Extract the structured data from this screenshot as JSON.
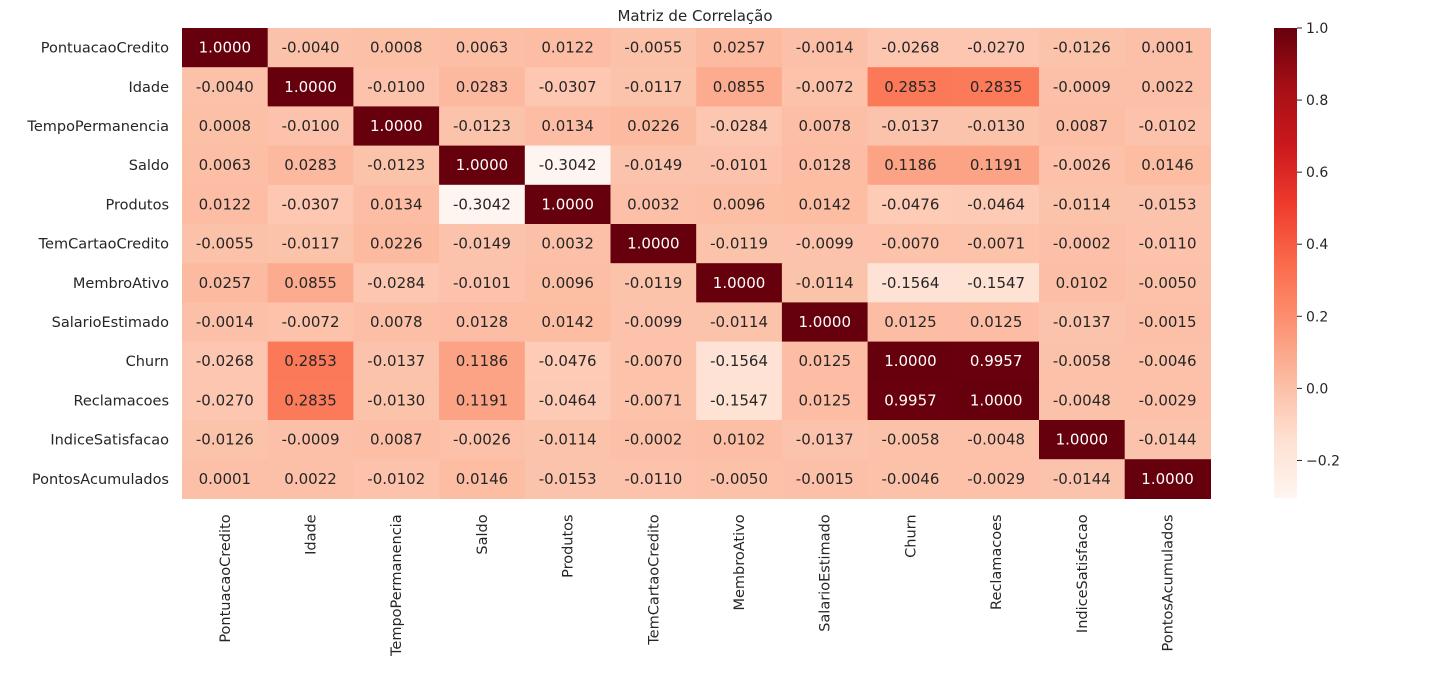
{
  "chart_data": {
    "type": "heatmap",
    "title": "Matriz de Correlação",
    "variables": [
      "PontuacaoCredito",
      "Idade",
      "TempoPermanencia",
      "Saldo",
      "Produtos",
      "TemCartaoCredito",
      "MembroAtivo",
      "SalarioEstimado",
      "Churn",
      "Reclamacoes",
      "IndiceSatisfacao",
      "PontosAcumulados"
    ],
    "matrix": [
      [
        1.0,
        -0.004,
        0.0008,
        0.0063,
        0.0122,
        -0.0055,
        0.0257,
        -0.0014,
        -0.0268,
        -0.027,
        -0.0126,
        0.0001
      ],
      [
        -0.004,
        1.0,
        -0.01,
        0.0283,
        -0.0307,
        -0.0117,
        0.0855,
        -0.0072,
        0.2853,
        0.2835,
        -0.0009,
        0.0022
      ],
      [
        0.0008,
        -0.01,
        1.0,
        -0.0123,
        0.0134,
        0.0226,
        -0.0284,
        0.0078,
        -0.0137,
        -0.013,
        0.0087,
        -0.0102
      ],
      [
        0.0063,
        0.0283,
        -0.0123,
        1.0,
        -0.3042,
        -0.0149,
        -0.0101,
        0.0128,
        0.1186,
        0.1191,
        -0.0026,
        0.0146
      ],
      [
        0.0122,
        -0.0307,
        0.0134,
        -0.3042,
        1.0,
        0.0032,
        0.0096,
        0.0142,
        -0.0476,
        -0.0464,
        -0.0114,
        -0.0153
      ],
      [
        -0.0055,
        -0.0117,
        0.0226,
        -0.0149,
        0.0032,
        1.0,
        -0.0119,
        -0.0099,
        -0.007,
        -0.0071,
        -0.0002,
        -0.011
      ],
      [
        0.0257,
        0.0855,
        -0.0284,
        -0.0101,
        0.0096,
        -0.0119,
        1.0,
        -0.0114,
        -0.1564,
        -0.1547,
        0.0102,
        -0.005
      ],
      [
        -0.0014,
        -0.0072,
        0.0078,
        0.0128,
        0.0142,
        -0.0099,
        -0.0114,
        1.0,
        0.0125,
        0.0125,
        -0.0137,
        -0.0015
      ],
      [
        -0.0268,
        0.2853,
        -0.0137,
        0.1186,
        -0.0476,
        -0.007,
        -0.1564,
        0.0125,
        1.0,
        0.9957,
        -0.0058,
        -0.0046
      ],
      [
        -0.027,
        0.2835,
        -0.013,
        0.1191,
        -0.0464,
        -0.0071,
        -0.1547,
        0.0125,
        0.9957,
        1.0,
        -0.0048,
        -0.0029
      ],
      [
        -0.0126,
        -0.0009,
        0.0087,
        -0.0026,
        -0.0114,
        -0.0002,
        0.0102,
        -0.0137,
        -0.0058,
        -0.0048,
        1.0,
        -0.0144
      ],
      [
        0.0001,
        0.0022,
        -0.0102,
        0.0146,
        -0.0153,
        -0.011,
        -0.005,
        -0.0015,
        -0.0046,
        -0.0029,
        -0.0144,
        1.0
      ]
    ],
    "value_format": "4 decimals",
    "colormap": "Reds",
    "color_low": "#fff5f0",
    "color_high": "#67000d",
    "vmin": -0.3042,
    "vmax": 1.0,
    "colorbar_ticks": [
      1.0,
      0.8,
      0.6,
      0.4,
      0.2,
      0.0,
      -0.2
    ],
    "colorbar_tick_labels": [
      "1.0",
      "0.8",
      "0.6",
      "0.4",
      "0.2",
      "0.0",
      "−0.2"
    ],
    "legend_placement": "right (colorbar)",
    "grid": false
  }
}
